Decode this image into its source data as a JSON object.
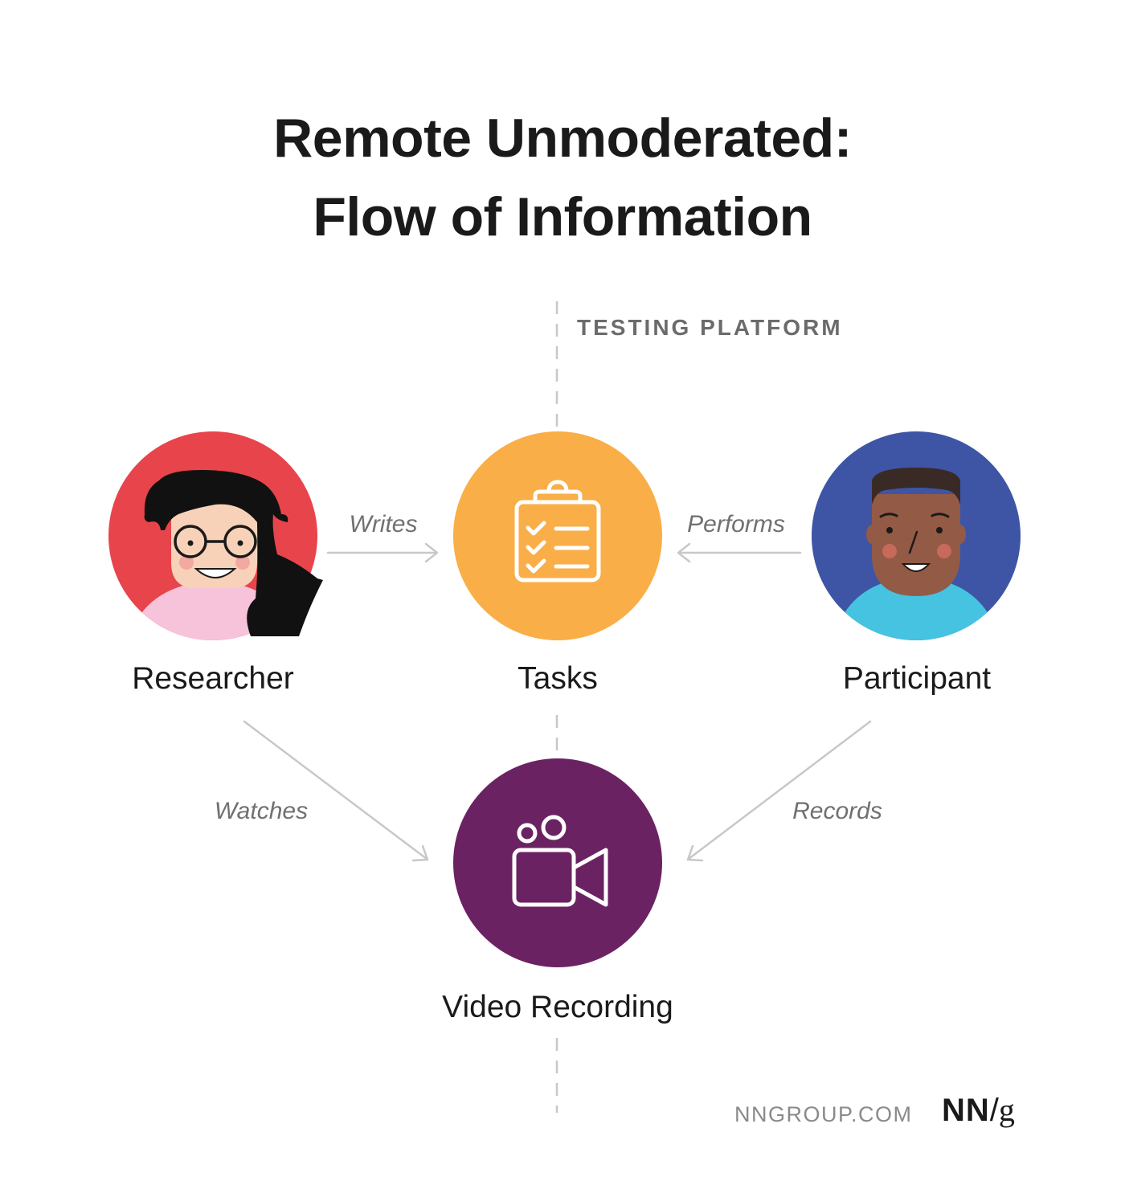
{
  "title": {
    "line1": "Remote Unmoderated:",
    "line2": "Flow of Information"
  },
  "section_label": "TESTING PLATFORM",
  "nodes": {
    "researcher": {
      "label": "Researcher",
      "color": "#e8444b"
    },
    "tasks": {
      "label": "Tasks",
      "color": "#f9ae47",
      "icon": "clipboard-checklist-icon"
    },
    "participant": {
      "label": "Participant",
      "color": "#3e55a5"
    },
    "video": {
      "label": "Video Recording",
      "color": "#6b2263",
      "icon": "video-camera-icon"
    }
  },
  "edges": {
    "writes": "Writes",
    "performs": "Performs",
    "watches": "Watches",
    "records": "Records"
  },
  "footer": {
    "site": "NNGROUP.COM",
    "logo_nn": "NN",
    "logo_slash": "/",
    "logo_g": "g"
  },
  "colors": {
    "arrow": "#c8c8c8",
    "divider": "#c8c8c8",
    "icon_stroke": "#ffffff",
    "text": "#1a1a1a"
  }
}
